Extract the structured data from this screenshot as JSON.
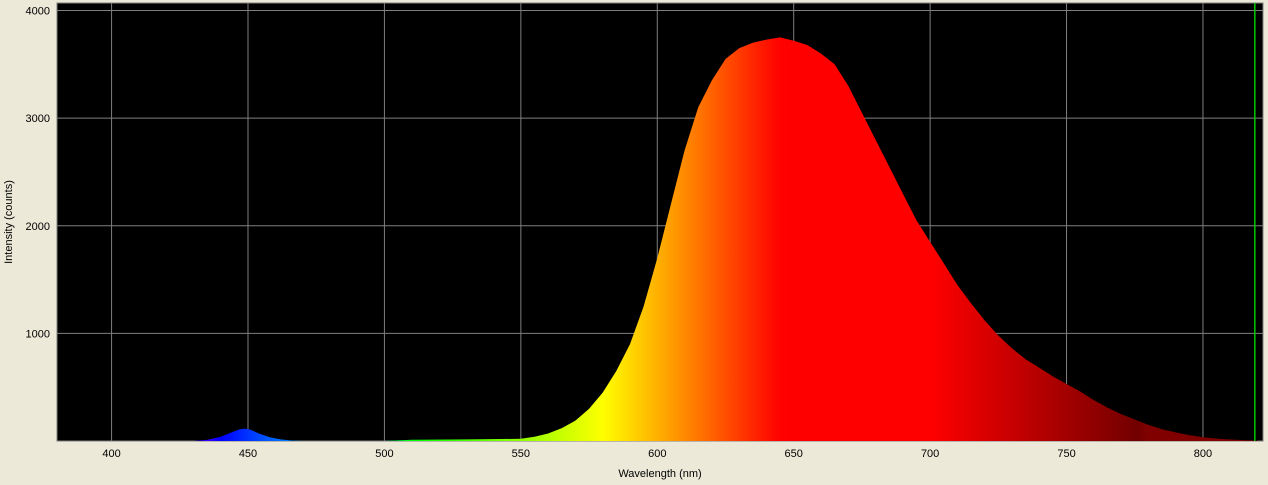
{
  "chart_data": {
    "type": "area",
    "title": "",
    "xlabel": "Wavelength (nm)",
    "ylabel": "Intensity (counts)",
    "xlim": [
      380,
      822
    ],
    "ylim": [
      0,
      4070
    ],
    "x_ticks": [
      400,
      450,
      500,
      550,
      600,
      650,
      700,
      750,
      800
    ],
    "y_ticks": [
      1000,
      2000,
      3000,
      4000
    ],
    "grid": true,
    "legend": "none",
    "colors": {
      "plot_background": "#000000",
      "grid": "#7f7f7f",
      "page_background": "#ece9d8",
      "marker_line": "#00c800"
    },
    "marker_x": 819,
    "series": [
      {
        "x": [
          380,
          430,
          435,
          440,
          444,
          447,
          449,
          451,
          454,
          458,
          462,
          466,
          470,
          500,
          510,
          530,
          550,
          555,
          560,
          565,
          570,
          575,
          580,
          585,
          590,
          595,
          600,
          605,
          610,
          615,
          620,
          625,
          630,
          635,
          640,
          645,
          650,
          655,
          660,
          665,
          670,
          675,
          680,
          685,
          690,
          695,
          700,
          705,
          710,
          715,
          720,
          725,
          730,
          735,
          740,
          745,
          750,
          755,
          760,
          765,
          770,
          775,
          780,
          785,
          790,
          795,
          800,
          805,
          810,
          815,
          820
        ],
        "y": [
          0,
          0,
          10,
          40,
          80,
          110,
          115,
          105,
          70,
          35,
          15,
          5,
          0,
          0,
          12,
          15,
          20,
          40,
          70,
          120,
          190,
          300,
          450,
          650,
          900,
          1250,
          1700,
          2200,
          2700,
          3100,
          3350,
          3550,
          3650,
          3700,
          3730,
          3750,
          3720,
          3680,
          3600,
          3500,
          3300,
          3050,
          2800,
          2550,
          2300,
          2050,
          1850,
          1650,
          1450,
          1280,
          1120,
          980,
          860,
          760,
          680,
          600,
          530,
          460,
          380,
          310,
          250,
          200,
          150,
          110,
          80,
          55,
          35,
          22,
          14,
          8,
          5
        ]
      }
    ]
  }
}
